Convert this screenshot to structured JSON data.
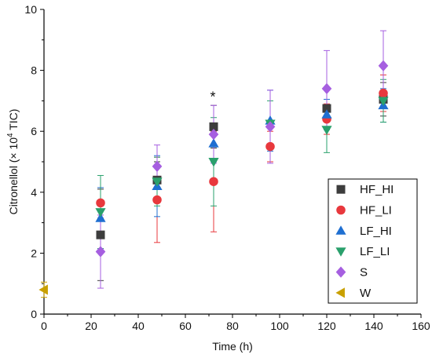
{
  "chart_data": {
    "type": "scatter",
    "xlabel": "Time (h)",
    "ylabel_parts": [
      "Citronellol (× 10",
      "4",
      " TIC)"
    ],
    "xlim": [
      0,
      160
    ],
    "ylim": [
      0,
      10
    ],
    "x_ticks": [
      0,
      20,
      40,
      60,
      80,
      100,
      120,
      140,
      160
    ],
    "y_ticks": [
      0,
      2,
      4,
      6,
      8,
      10
    ],
    "grid": false,
    "legend_position": "bottom-right",
    "annotations": [
      {
        "text": "*",
        "x": 72,
        "y": 7.05
      }
    ],
    "series": [
      {
        "name": "HF_HI",
        "marker": "square",
        "color": "#3d3d3d",
        "points": [
          {
            "x": 24,
            "y": 2.6,
            "err": 1.5
          },
          {
            "x": 48,
            "y": 4.4,
            "err": 0.6
          },
          {
            "x": 72,
            "y": 6.15,
            "err": 0.7
          },
          {
            "x": 120,
            "y": 6.75,
            "err": 0.6
          },
          {
            "x": 144,
            "y": 7.05,
            "err": 0.55
          }
        ]
      },
      {
        "name": "HF_LI",
        "marker": "circle",
        "color": "#e8383d",
        "points": [
          {
            "x": 24,
            "y": 3.65,
            "err": 0.5
          },
          {
            "x": 48,
            "y": 3.75,
            "err": 1.4
          },
          {
            "x": 72,
            "y": 4.35,
            "err": 1.65
          },
          {
            "x": 96,
            "y": 5.5,
            "err": 0.5
          },
          {
            "x": 120,
            "y": 6.4,
            "err": 0.5
          },
          {
            "x": 144,
            "y": 7.25,
            "err": 0.6
          }
        ]
      },
      {
        "name": "LF_HI",
        "marker": "triangle-up",
        "color": "#1f6fd1",
        "points": [
          {
            "x": 24,
            "y": 3.15,
            "err": 1.0
          },
          {
            "x": 48,
            "y": 4.2,
            "err": 1.0
          },
          {
            "x": 72,
            "y": 5.6,
            "err": 0.6
          },
          {
            "x": 96,
            "y": 6.35,
            "err": 1.0
          },
          {
            "x": 120,
            "y": 6.55,
            "err": 0.5
          },
          {
            "x": 144,
            "y": 6.85,
            "err": 0.55
          }
        ]
      },
      {
        "name": "LF_LI",
        "marker": "triangle-down",
        "color": "#2aa06c",
        "points": [
          {
            "x": 24,
            "y": 3.35,
            "err": 1.2
          },
          {
            "x": 48,
            "y": 4.35,
            "err": 0.8
          },
          {
            "x": 72,
            "y": 5.0,
            "err": 1.45
          },
          {
            "x": 96,
            "y": 6.25,
            "err": 0.75
          },
          {
            "x": 120,
            "y": 6.05,
            "err": 0.75
          },
          {
            "x": 144,
            "y": 7.0,
            "err": 0.7
          }
        ]
      },
      {
        "name": "S",
        "marker": "diamond",
        "color": "#a65fe0",
        "points": [
          {
            "x": 24,
            "y": 2.05,
            "err": 1.2
          },
          {
            "x": 48,
            "y": 4.85,
            "err": 0.7
          },
          {
            "x": 72,
            "y": 5.9,
            "err": 0.95
          },
          {
            "x": 96,
            "y": 6.15,
            "err": 1.2
          },
          {
            "x": 120,
            "y": 7.4,
            "err": 1.25
          },
          {
            "x": 144,
            "y": 8.15,
            "err": 1.15
          }
        ]
      },
      {
        "name": "W",
        "marker": "triangle-left",
        "color": "#c9a000",
        "points": [
          {
            "x": 0,
            "y": 0.8,
            "err": 0.25
          }
        ]
      }
    ]
  }
}
